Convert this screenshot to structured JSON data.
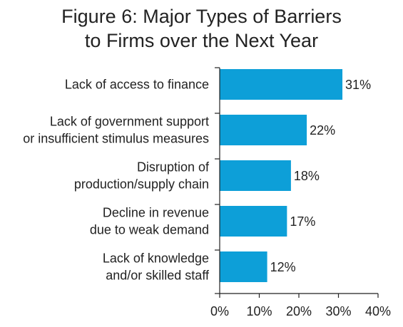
{
  "chart_data": {
    "type": "bar",
    "orientation": "horizontal",
    "title_lines": [
      "Figure 6: Major Types of Barriers",
      "to Firms over the Next Year"
    ],
    "categories": [
      [
        "Lack of access to finance"
      ],
      [
        "Lack of government support",
        "or insufficient stimulus measures"
      ],
      [
        "Disruption of",
        "production/supply chain"
      ],
      [
        "Decline in revenue",
        "due to weak demand"
      ],
      [
        "Lack of knowledge",
        "and/or skilled staff"
      ]
    ],
    "values": [
      31,
      22,
      18,
      17,
      12
    ],
    "value_labels": [
      "31%",
      "22%",
      "18%",
      "17%",
      "12%"
    ],
    "xlim": [
      0,
      40
    ],
    "xticks": [
      0,
      10,
      20,
      30,
      40
    ],
    "xtick_labels": [
      "0%",
      "10%",
      "20%",
      "30%",
      "40%"
    ],
    "grid": false,
    "colors": {
      "bar": "#0d9fd8",
      "axis": "#222222"
    }
  }
}
